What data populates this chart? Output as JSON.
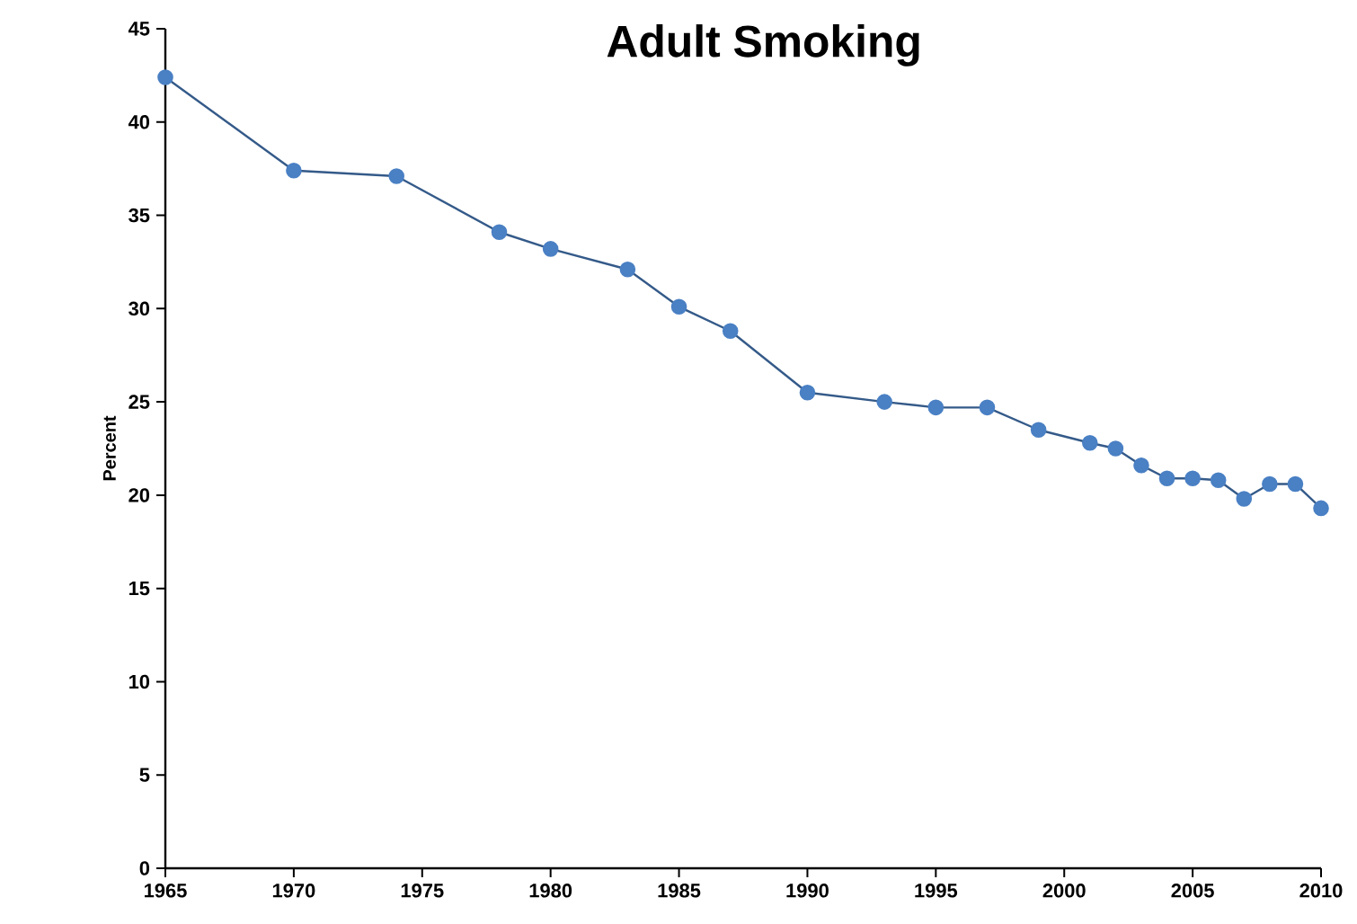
{
  "chart_data": {
    "type": "line",
    "title": "Adult Smoking",
    "ylabel": "Percent",
    "x": [
      1965,
      1970,
      1974,
      1978,
      1980,
      1983,
      1985,
      1987,
      1990,
      1993,
      1995,
      1997,
      1999,
      2001,
      2002,
      2003,
      2004,
      2005,
      2006,
      2007,
      2008,
      2009,
      2010
    ],
    "series": [
      {
        "color": "#4a80c4",
        "values": [
          42.4,
          37.4,
          37.1,
          34.1,
          33.2,
          32.1,
          30.1,
          28.8,
          25.5,
          25.0,
          24.7,
          24.7,
          23.5,
          22.8,
          22.5,
          21.6,
          20.9,
          20.9,
          20.8,
          19.8,
          20.6,
          20.6,
          19.3
        ]
      }
    ],
    "xlim": [
      1965,
      2010
    ],
    "xticks": [
      1965,
      1970,
      1975,
      1980,
      1985,
      1990,
      1995,
      2000,
      2005,
      2010
    ],
    "ylim": [
      0,
      45
    ],
    "yticks": [
      0,
      5,
      10,
      15,
      20,
      25,
      30,
      35,
      40,
      45
    ],
    "grid": false,
    "marker": "circle",
    "line_style": "solid"
  }
}
